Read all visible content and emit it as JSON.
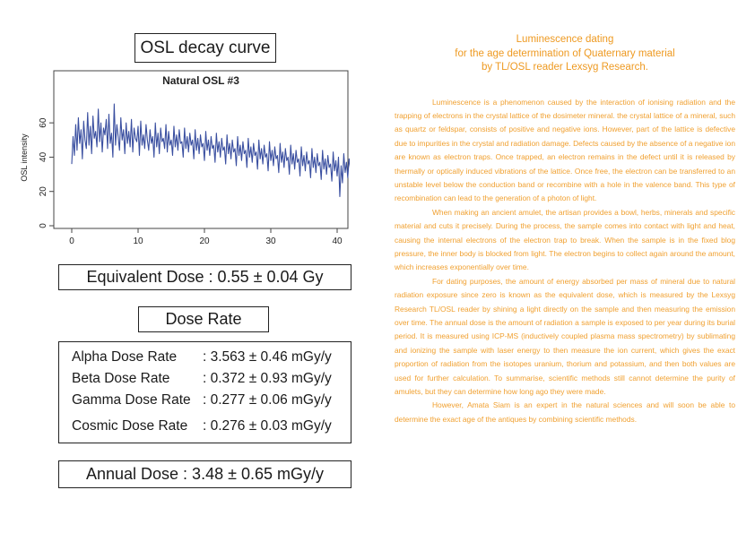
{
  "left": {
    "chart_box_title": "OSL decay curve",
    "equivalent_dose": "Equivalent Dose : 0.55 ± 0.04 Gy",
    "dose_rate_title": "Dose Rate",
    "dose_rates": [
      {
        "label": "Alpha Dose Rate",
        "value": ": 3.563 ± 0.46 mGy/y"
      },
      {
        "label": "Beta Dose Rate",
        "value": ": 0.372 ± 0.93 mGy/y"
      },
      {
        "label": "Gamma Dose Rate",
        "value": ": 0.277 ± 0.06 mGy/y"
      },
      {
        "label": "Cosmic Dose Rate",
        "value": ": 0.276 ± 0.03 mGy/y"
      }
    ],
    "annual_dose": "Annual Dose : 3.48 ± 0.65 mGy/y"
  },
  "chart_data": {
    "type": "line",
    "title": "Natural OSL #3",
    "xlabel": "",
    "ylabel": "OSL intensity",
    "xlim": [
      0,
      40
    ],
    "ylim": [
      0,
      70
    ],
    "xticks": [
      0,
      10,
      20,
      30,
      40
    ],
    "yticks": [
      0,
      20,
      40,
      60
    ],
    "grid": false,
    "line_color": "#3a4fa0",
    "x_step": 0.2,
    "values": [
      36,
      52,
      41,
      59,
      44,
      63,
      48,
      56,
      39,
      61,
      50,
      45,
      66,
      47,
      58,
      42,
      64,
      51,
      55,
      46,
      68,
      49,
      60,
      43,
      57,
      53,
      62,
      45,
      65,
      48,
      54,
      40,
      71,
      47,
      59,
      52,
      44,
      63,
      50,
      56,
      42,
      60,
      48,
      55,
      46,
      62,
      43,
      57,
      51,
      49,
      58,
      41,
      61,
      47,
      53,
      45,
      59,
      50,
      44,
      56,
      48,
      52,
      40,
      60,
      46,
      54,
      42,
      57,
      49,
      51,
      45,
      59,
      43,
      55,
      47,
      50,
      41,
      58,
      46,
      53,
      44,
      56,
      48,
      49,
      40,
      57,
      45,
      52,
      43,
      54,
      47,
      50,
      39,
      56,
      44,
      51,
      42,
      53,
      46,
      48,
      38,
      55,
      44,
      50,
      41,
      52,
      45,
      47,
      37,
      54,
      43,
      49,
      40,
      51,
      44,
      46,
      36,
      53,
      42,
      48,
      39,
      50,
      43,
      45,
      35,
      52,
      41,
      47,
      38,
      49,
      42,
      44,
      34,
      51,
      40,
      46,
      37,
      48,
      41,
      43,
      33,
      50,
      39,
      45,
      36,
      47,
      40,
      42,
      32,
      49,
      38,
      44,
      35,
      46,
      39,
      41,
      31,
      48,
      37,
      43,
      34,
      45,
      38,
      40,
      30,
      47,
      36,
      42,
      33,
      44,
      37,
      39,
      29,
      46,
      35,
      41,
      32,
      43,
      36,
      38,
      28,
      45,
      34,
      40,
      31,
      42,
      35,
      37,
      27,
      44,
      33,
      39,
      30,
      41,
      34,
      36,
      26,
      43,
      32,
      38,
      29,
      40,
      17,
      35,
      25,
      42,
      31,
      37,
      28,
      39,
      33,
      34,
      22,
      38
    ]
  },
  "right": {
    "title_lines": [
      "Luminescence dating",
      "for the age determination of Quaternary material",
      "by TL/OSL reader Lexsyg Research."
    ],
    "paragraphs": [
      "Luminescence is a phenomenon caused by the interaction of ionising radiation and the trapping of electrons in the crystal lattice of the dosimeter mineral. the crystal lattice of a mineral, such as quartz or feldspar, consists of positive and negative ions. However, part of the lattice is defective due to impurities in the crystal and radiation damage. Defects caused by the absence of a negative ion are known as electron traps. Once trapped, an electron remains in the defect until it is released by thermally or optically induced vibrations of the lattice. Once free, the electron can be transferred to an unstable level below the conduction band or recombine with a hole in the valence band. This type of recombination can lead to the generation of a photon of light.",
      "When making an ancient amulet, the artisan provides a bowl, herbs, minerals and specific material and cuts it precisely. During the process, the sample comes into contact with light and heat, causing the internal electrons of the electron trap to break. When the sample is in the fixed blog pressure, the inner body is blocked from light. The electron begins to collect again around the amount, which increases exponentially over time.",
      "For dating purposes, the amount of energy absorbed per mass of mineral due to natural radiation exposure since zero is known as the equivalent dose, which is measured by the Lexsyg Research TL/OSL reader by shining a light directly on the sample and then measuring the emission over time. The annual dose is the amount of radiation a sample is exposed to per year during its burial period. It is measured using ICP-MS (inductively coupled plasma mass spectrometry) by sublimating and ionizing the sample with laser energy to then measure the ion current, which gives the exact proportion of radiation from the isotopes uranium, thorium and potassium, and then both values are used for further calculation. To summarise, scientific methods still cannot determine the purity of amulets, but they can determine how long ago they were made.",
      "However, Amata Siam is an expert in the natural sciences and will soon be able to determine the exact age of the antiques by combining scientific methods."
    ]
  }
}
